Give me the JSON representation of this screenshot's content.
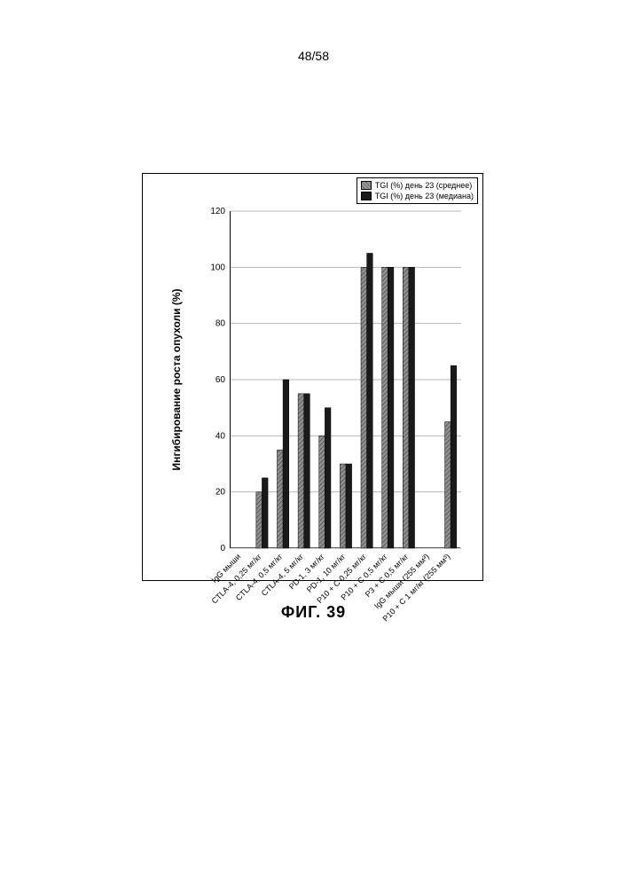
{
  "page_number": "48/58",
  "figure_caption": "ФИГ. 39",
  "chart": {
    "type": "bar-grouped-horizontal-look",
    "ylabel": "Ингибирование роста опухоли (%)",
    "ylim": [
      0,
      120
    ],
    "ytick_step": 20,
    "yticks": [
      0,
      20,
      40,
      60,
      80,
      100,
      120
    ],
    "grid_color": "#b8b8b8",
    "background_color": "#ffffff",
    "bar_border_color": "#000000",
    "series": [
      {
        "name": "TGI (%) день 23 (среднее)",
        "color": "#9a9a9a",
        "pattern": "hatched"
      },
      {
        "name": "TGI (%) день 23 (медиана)",
        "color": "#1a1a1a",
        "pattern": "solid"
      }
    ],
    "categories": [
      "IgG мыши",
      "CTLA-4, 0,25 мг/кг",
      "CTLA-4, 0,5 мг/кг",
      "CTLA-4, 5 мг/кг",
      "PD-1, 3 мг/кг",
      "PD-1, 10 мг/кг",
      "P10 + C 0,25 мг/кг",
      "P10 + C 0,5 мг/кг",
      "P3 + C 0,5 мг/кг",
      "IgG мыши (255 мм³)",
      "P10 + C 1 мг/кг (255 мм³)"
    ],
    "values_mean": [
      0,
      20,
      35,
      55,
      40,
      30,
      100,
      100,
      100,
      0,
      45
    ],
    "values_median": [
      0,
      25,
      60,
      55,
      50,
      30,
      105,
      100,
      100,
      0,
      65
    ],
    "bar_group_gap": 0.35,
    "bar_width": 0.28,
    "label_fontsize": 9,
    "tick_fontsize": 10,
    "ylabel_fontsize": 12,
    "legend_fontsize": 9,
    "legend_position": "top-right"
  }
}
